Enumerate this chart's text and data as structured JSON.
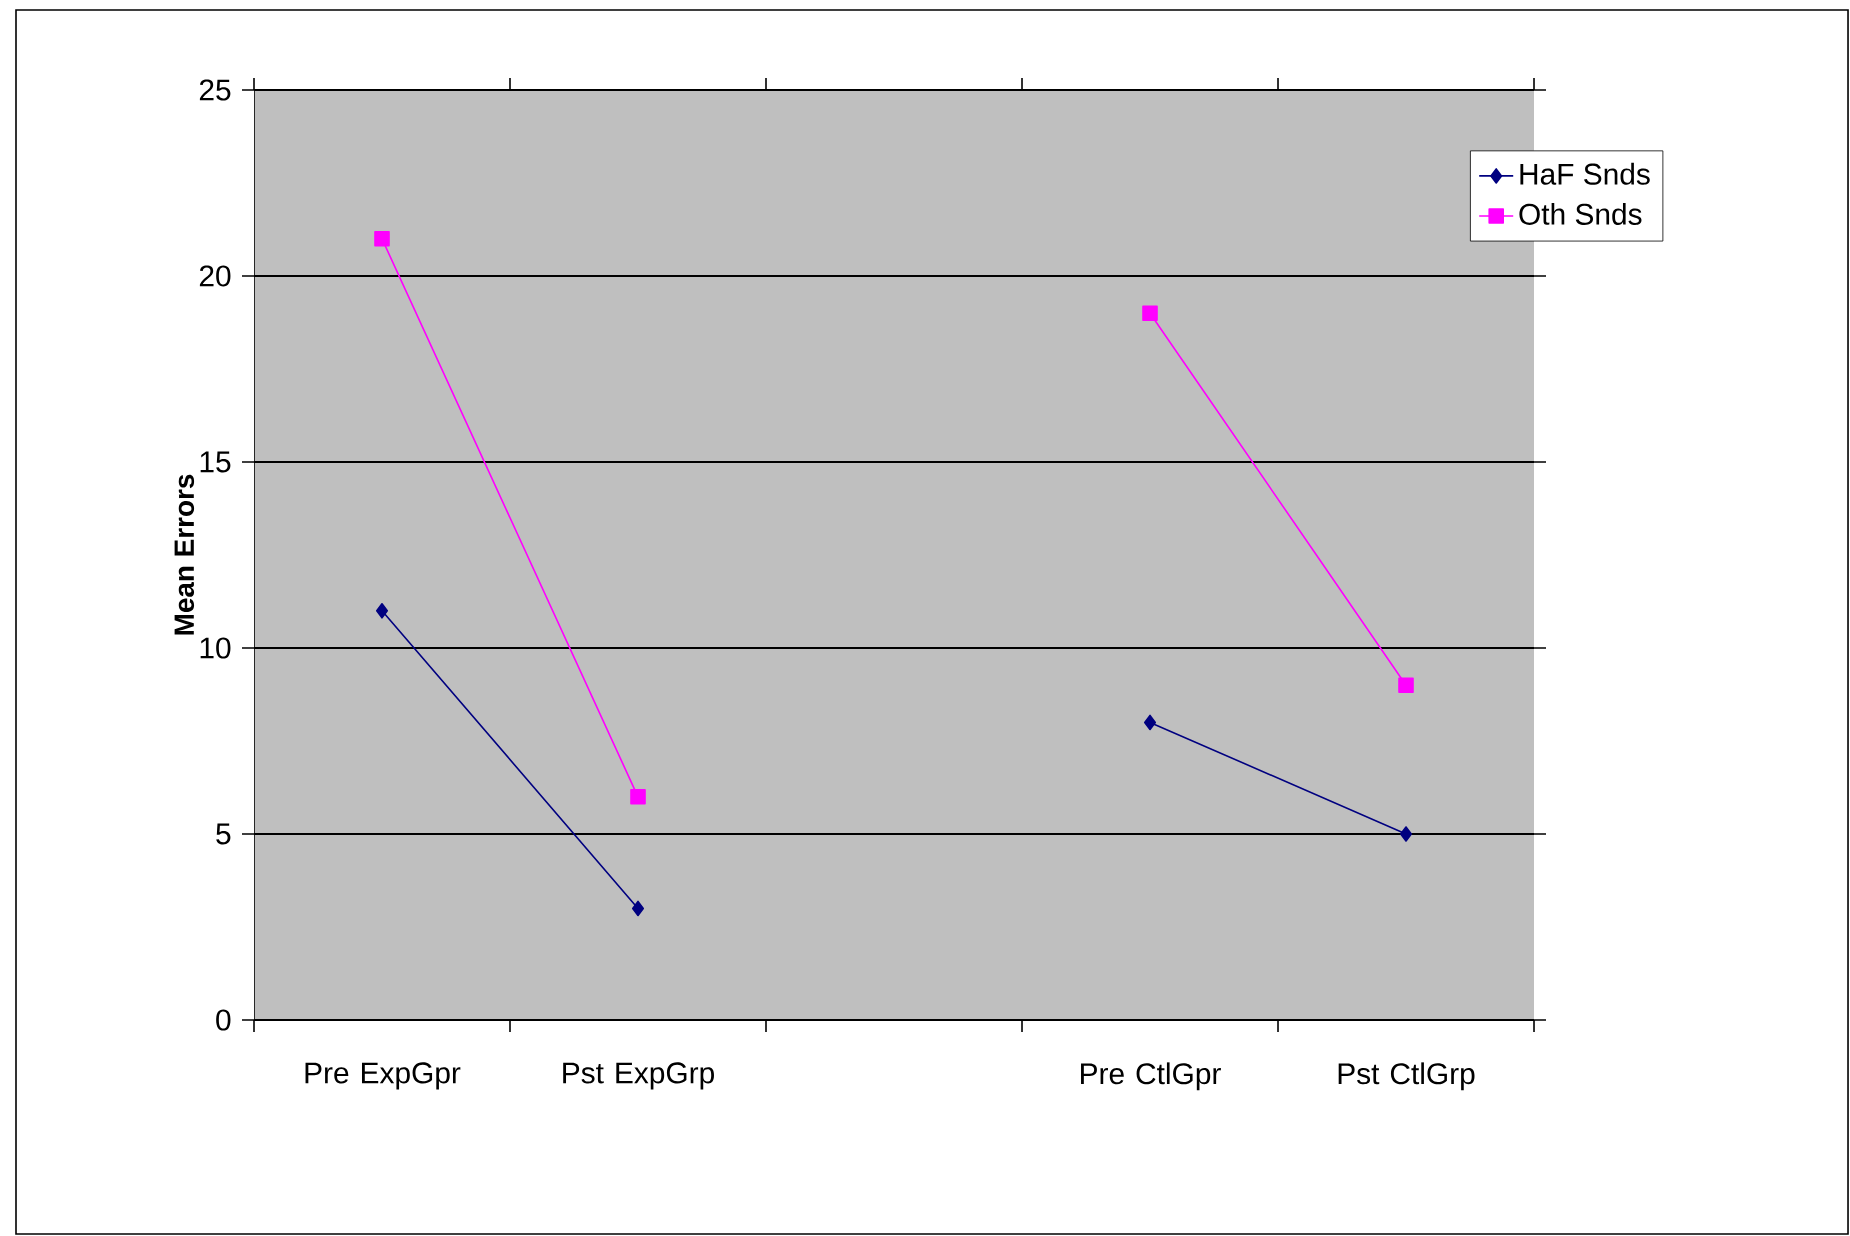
{
  "chart_data": {
    "type": "line",
    "ylabel": "Mean Errors",
    "categories": [
      "Pre ExpGpr",
      "Pst ExpGrp",
      null,
      "Pre CtlGpr",
      "Pst CtlGrp"
    ],
    "series": [
      {
        "name": "HaF Snds",
        "color": "#000080",
        "marker": "diamond",
        "values": [
          11,
          3,
          null,
          8,
          5
        ]
      },
      {
        "name": "Oth Snds",
        "color": "#ff00ff",
        "marker": "square",
        "values": [
          21,
          6,
          null,
          19,
          9
        ]
      }
    ],
    "ylim": [
      0,
      25
    ],
    "yticks": [
      0,
      5,
      10,
      15,
      20,
      25
    ],
    "grid": "y",
    "legend": "right"
  }
}
